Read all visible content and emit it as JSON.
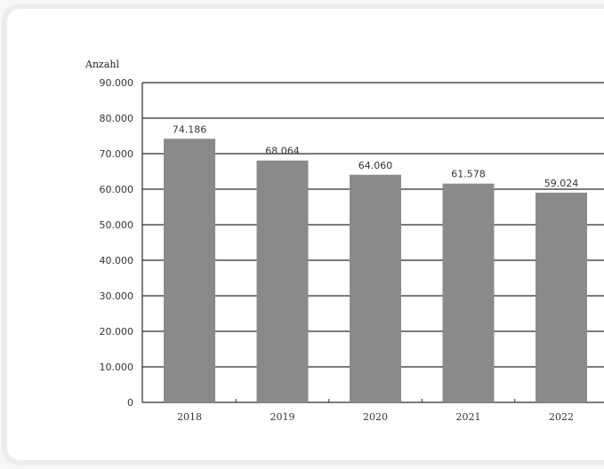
{
  "chart_data": {
    "type": "bar",
    "title": "",
    "ylabel": "Anzahl",
    "xlabel": "",
    "categories": [
      "2018",
      "2019",
      "2020",
      "2021",
      "2022"
    ],
    "values": [
      74186,
      68064,
      64060,
      61578,
      59024
    ],
    "value_labels": [
      "74.186",
      "68.064",
      "64.060",
      "61.578",
      "59.024"
    ],
    "ylim": [
      0,
      90000
    ],
    "yticks": [
      0,
      10000,
      20000,
      30000,
      40000,
      50000,
      60000,
      70000,
      80000,
      90000
    ],
    "ytick_labels": [
      "0",
      "10.000",
      "20.000",
      "30.000",
      "40.000",
      "50.000",
      "60.000",
      "70.000",
      "80.000",
      "90.000"
    ],
    "grid": true,
    "bar_color": "#8a8a8a"
  }
}
